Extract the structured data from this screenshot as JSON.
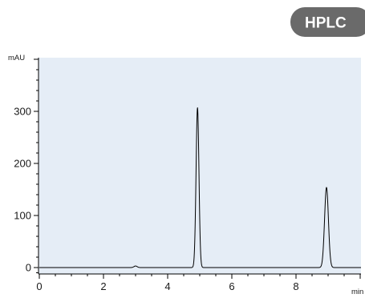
{
  "badge": {
    "label": "HPLC",
    "color": "#6a6a6a"
  },
  "chart_data": {
    "type": "line",
    "title": "",
    "xlabel": "min",
    "ylabel": "mAU",
    "xlim": [
      0,
      10
    ],
    "ylim": [
      -12,
      400
    ],
    "xticks": [
      0,
      2,
      4,
      6,
      8
    ],
    "yticks": [
      0,
      100,
      200,
      300
    ],
    "grid": false,
    "background_color": "#e5edf6",
    "line_color": "#000000",
    "baseline": 0,
    "peaks": [
      {
        "retention_time": 3.0,
        "height": 3
      },
      {
        "retention_time": 4.93,
        "height": 307
      },
      {
        "retention_time": 8.95,
        "height": 154
      }
    ]
  }
}
